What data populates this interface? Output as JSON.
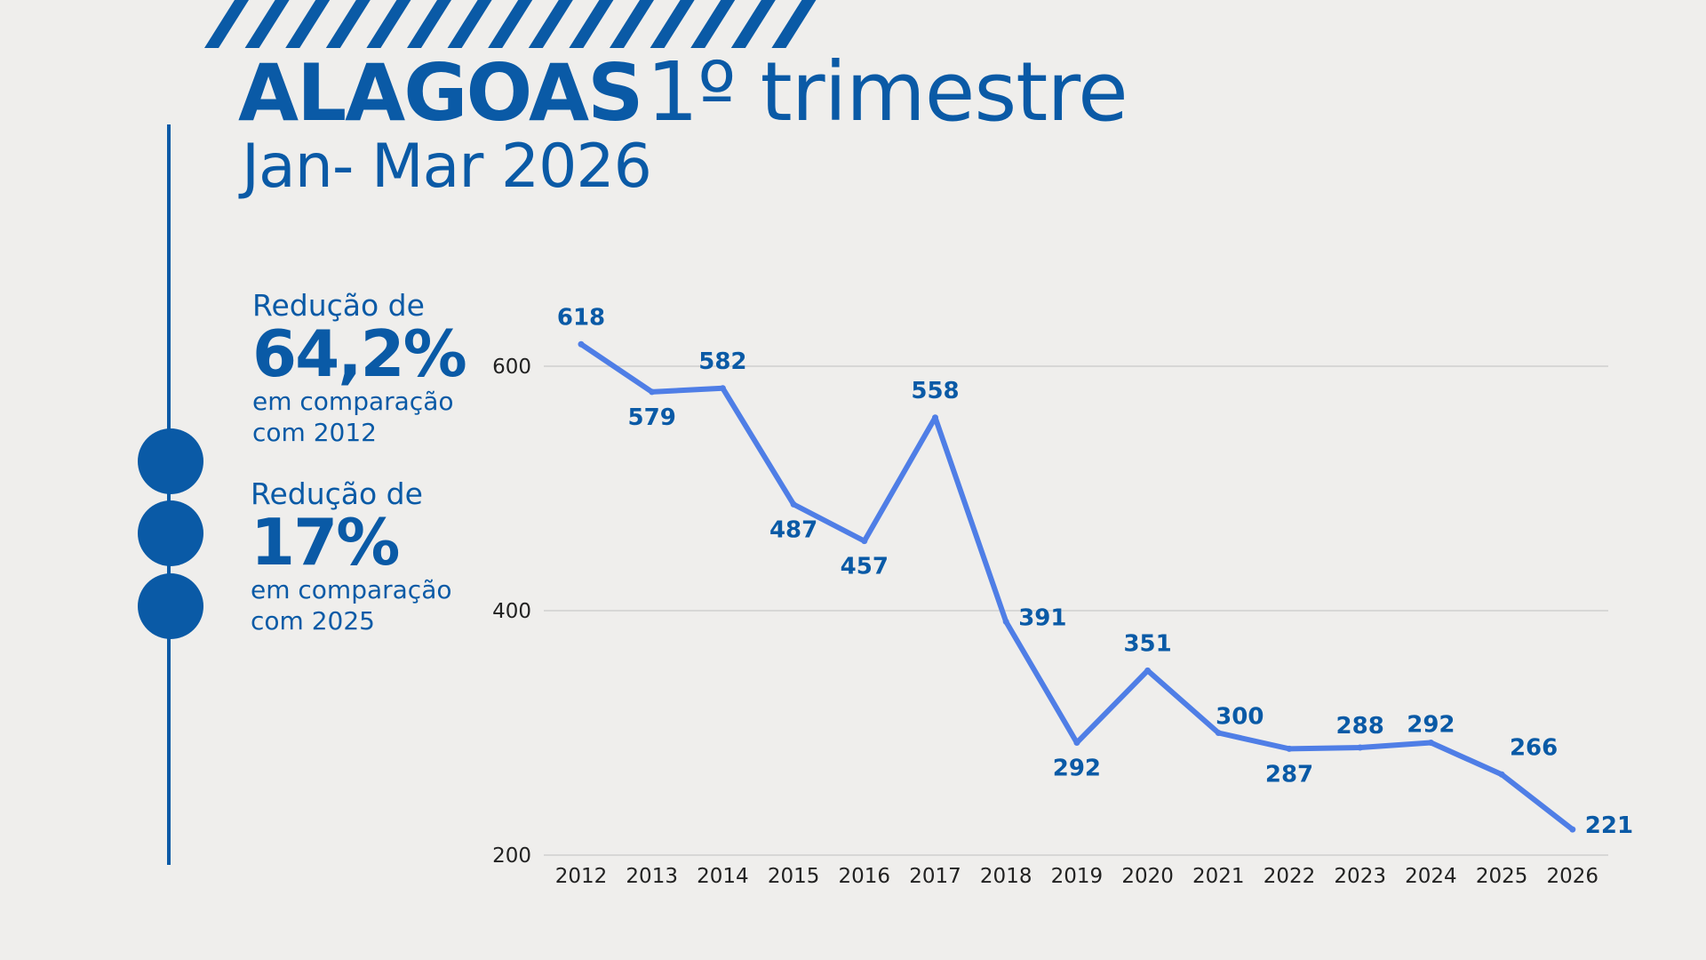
{
  "header": {
    "title_bold": "ALAGOAS",
    "title_rest": "1º trimestre",
    "subtitle": "Jan- Mar 2026"
  },
  "colors": {
    "brand": "#0a5aa6",
    "line": "#4f7ee6",
    "background": "#efeeec",
    "grid": "#cfcfcf"
  },
  "stats": [
    {
      "lead": "Redução de",
      "value": "64,2%",
      "line1": "em comparação",
      "line2": "com 2012"
    },
    {
      "lead": "Redução de",
      "value": "17%",
      "line1": "em comparação",
      "line2": "com 2025"
    }
  ],
  "chart_data": {
    "type": "line",
    "title": "",
    "xlabel": "",
    "ylabel": "",
    "x": [
      "2012",
      "2013",
      "2014",
      "2015",
      "2016",
      "2017",
      "2018",
      "2019",
      "2020",
      "2021",
      "2022",
      "2023",
      "2024",
      "2025",
      "2026"
    ],
    "series": [
      {
        "values": [
          618,
          579,
          582,
          487,
          457,
          558,
          391,
          292,
          351,
          300,
          287,
          288,
          292,
          266,
          221
        ]
      }
    ],
    "yticks": [
      200,
      400,
      600
    ],
    "ylim": [
      200,
      650
    ],
    "grid": true,
    "data_labels": true
  }
}
